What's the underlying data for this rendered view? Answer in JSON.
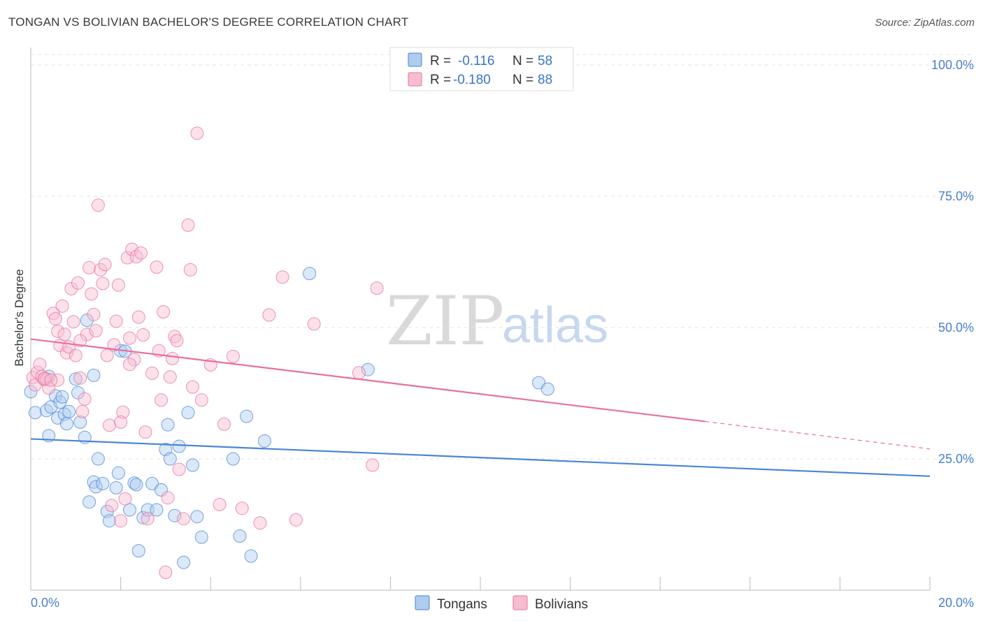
{
  "header": {
    "title": "TONGAN VS BOLIVIAN BACHELOR'S DEGREE CORRELATION CHART",
    "source": "Source: ZipAtlas.com"
  },
  "watermark": {
    "zip": "ZIP",
    "atlas": "atlas"
  },
  "colors": {
    "tongans": "#4a86d4",
    "tongans_fill": "#aecbf0",
    "bolivians": "#e8709a",
    "bolivians_fill": "#f6bdd0",
    "grid": "#e3e3e3",
    "axis_label": "#4a7fcc"
  },
  "chart_data": {
    "type": "scatter",
    "title": "TONGAN VS BOLIVIAN BACHELOR'S DEGREE CORRELATION CHART",
    "xlabel": "",
    "ylabel": "Bachelor's Degree",
    "xlim": [
      0,
      20
    ],
    "ylim": [
      0,
      102
    ],
    "x_tick_labels": {
      "min": "0.0%",
      "max": "20.0%"
    },
    "y_ticks": [
      {
        "value": 25,
        "label": "25.0%"
      },
      {
        "value": 50,
        "label": "50.0%"
      },
      {
        "value": 75,
        "label": "75.0%"
      },
      {
        "value": 100,
        "label": "100.0%"
      }
    ],
    "grid": true,
    "legend_position": "top-center",
    "stats": [
      {
        "series": "Tongans",
        "r_label": "R =",
        "r_value": "-0.116",
        "n_label": "N =",
        "n_value": "58"
      },
      {
        "series": "Bolivians",
        "r_label": "R =",
        "r_value": "-0.180",
        "n_label": "N =",
        "n_value": "88"
      }
    ],
    "series": [
      {
        "name": "Tongans",
        "trend": {
          "x0": 0,
          "y0": 28.8,
          "x1": 20,
          "y1": 21.7,
          "solid_to": 20
        },
        "points": [
          [
            0.0,
            37.8
          ],
          [
            0.1,
            33.8
          ],
          [
            0.35,
            34.2
          ],
          [
            0.4,
            29.4
          ],
          [
            0.45,
            34.9
          ],
          [
            0.55,
            37.0
          ],
          [
            0.6,
            32.8
          ],
          [
            0.65,
            35.8
          ],
          [
            0.7,
            36.8
          ],
          [
            0.75,
            33.5
          ],
          [
            0.8,
            31.7
          ],
          [
            0.85,
            34.0
          ],
          [
            1.0,
            40.2
          ],
          [
            1.05,
            37.6
          ],
          [
            1.1,
            32.0
          ],
          [
            1.2,
            29.1
          ],
          [
            1.3,
            16.8
          ],
          [
            1.4,
            20.6
          ],
          [
            1.45,
            19.7
          ],
          [
            1.5,
            25.0
          ],
          [
            1.6,
            20.3
          ],
          [
            1.7,
            15.0
          ],
          [
            1.75,
            13.2
          ],
          [
            1.9,
            19.5
          ],
          [
            1.95,
            22.3
          ],
          [
            2.0,
            45.6
          ],
          [
            2.1,
            45.5
          ],
          [
            2.2,
            15.3
          ],
          [
            2.3,
            20.4
          ],
          [
            2.35,
            20.1
          ],
          [
            2.4,
            7.5
          ],
          [
            2.5,
            13.8
          ],
          [
            2.6,
            15.3
          ],
          [
            2.7,
            20.3
          ],
          [
            2.8,
            15.3
          ],
          [
            2.9,
            19.1
          ],
          [
            3.0,
            26.8
          ],
          [
            3.05,
            31.5
          ],
          [
            3.1,
            25.0
          ],
          [
            3.2,
            14.2
          ],
          [
            3.3,
            27.4
          ],
          [
            3.4,
            5.3
          ],
          [
            3.5,
            33.8
          ],
          [
            3.6,
            23.8
          ],
          [
            3.7,
            14.0
          ],
          [
            3.8,
            10.1
          ],
          [
            4.5,
            25.0
          ],
          [
            4.65,
            10.3
          ],
          [
            4.8,
            33.1
          ],
          [
            4.9,
            6.5
          ],
          [
            5.2,
            28.4
          ],
          [
            6.2,
            60.3
          ],
          [
            1.25,
            51.4
          ],
          [
            0.4,
            40.7
          ],
          [
            1.4,
            40.9
          ],
          [
            7.5,
            42.0
          ],
          [
            11.3,
            39.5
          ],
          [
            11.5,
            38.3
          ]
        ]
      },
      {
        "name": "Bolivians",
        "trend": {
          "x0": 0,
          "y0": 47.8,
          "x1": 20,
          "y1": 26.9,
          "solid_to": 15
        },
        "points": [
          [
            0.05,
            40.5
          ],
          [
            0.1,
            39.1
          ],
          [
            0.15,
            41.5
          ],
          [
            0.2,
            43.0
          ],
          [
            0.25,
            40.7
          ],
          [
            0.3,
            40.1
          ],
          [
            0.35,
            40.2
          ],
          [
            0.4,
            38.5
          ],
          [
            0.5,
            52.7
          ],
          [
            0.55,
            51.7
          ],
          [
            0.6,
            49.3
          ],
          [
            0.65,
            46.6
          ],
          [
            0.7,
            54.1
          ],
          [
            0.75,
            48.7
          ],
          [
            0.8,
            45.2
          ],
          [
            0.85,
            46.3
          ],
          [
            0.9,
            57.4
          ],
          [
            0.95,
            51.1
          ],
          [
            1.0,
            44.7
          ],
          [
            1.05,
            58.5
          ],
          [
            1.1,
            40.4
          ],
          [
            1.15,
            34.0
          ],
          [
            1.2,
            36.4
          ],
          [
            1.25,
            48.7
          ],
          [
            1.3,
            61.4
          ],
          [
            1.35,
            56.4
          ],
          [
            1.4,
            52.5
          ],
          [
            1.45,
            49.4
          ],
          [
            1.5,
            73.3
          ],
          [
            1.55,
            61.0
          ],
          [
            1.6,
            58.4
          ],
          [
            1.65,
            62.0
          ],
          [
            1.7,
            44.7
          ],
          [
            1.75,
            31.4
          ],
          [
            1.8,
            16.1
          ],
          [
            1.85,
            46.7
          ],
          [
            1.9,
            51.2
          ],
          [
            1.95,
            58.1
          ],
          [
            2.0,
            13.2
          ],
          [
            2.05,
            33.9
          ],
          [
            2.1,
            17.4
          ],
          [
            2.15,
            63.3
          ],
          [
            2.2,
            48.0
          ],
          [
            2.25,
            64.9
          ],
          [
            2.3,
            43.9
          ],
          [
            2.35,
            63.5
          ],
          [
            2.4,
            52.0
          ],
          [
            2.45,
            64.2
          ],
          [
            2.5,
            48.6
          ],
          [
            2.55,
            30.1
          ],
          [
            2.6,
            13.6
          ],
          [
            2.7,
            41.3
          ],
          [
            2.8,
            61.5
          ],
          [
            2.85,
            45.6
          ],
          [
            2.9,
            36.2
          ],
          [
            2.95,
            53.0
          ],
          [
            3.0,
            3.4
          ],
          [
            3.05,
            17.6
          ],
          [
            3.1,
            40.6
          ],
          [
            3.15,
            44.1
          ],
          [
            3.2,
            48.3
          ],
          [
            3.25,
            47.5
          ],
          [
            3.3,
            23.0
          ],
          [
            3.4,
            13.6
          ],
          [
            3.5,
            69.5
          ],
          [
            3.55,
            61.0
          ],
          [
            3.6,
            38.7
          ],
          [
            3.7,
            87.0
          ],
          [
            3.8,
            36.2
          ],
          [
            4.0,
            42.9
          ],
          [
            4.2,
            16.3
          ],
          [
            4.3,
            31.6
          ],
          [
            4.5,
            44.5
          ],
          [
            4.7,
            15.6
          ],
          [
            5.1,
            12.8
          ],
          [
            5.3,
            52.4
          ],
          [
            5.6,
            59.6
          ],
          [
            5.9,
            13.4
          ],
          [
            6.3,
            50.7
          ],
          [
            7.3,
            41.4
          ],
          [
            7.6,
            23.8
          ],
          [
            7.7,
            57.5
          ],
          [
            0.6,
            40.0
          ],
          [
            0.3,
            40.3
          ],
          [
            0.45,
            40.0
          ],
          [
            1.1,
            47.5
          ],
          [
            2.0,
            32.0
          ],
          [
            2.2,
            43.0
          ]
        ]
      }
    ],
    "bottom_legend": [
      "Tongans",
      "Bolivians"
    ]
  }
}
